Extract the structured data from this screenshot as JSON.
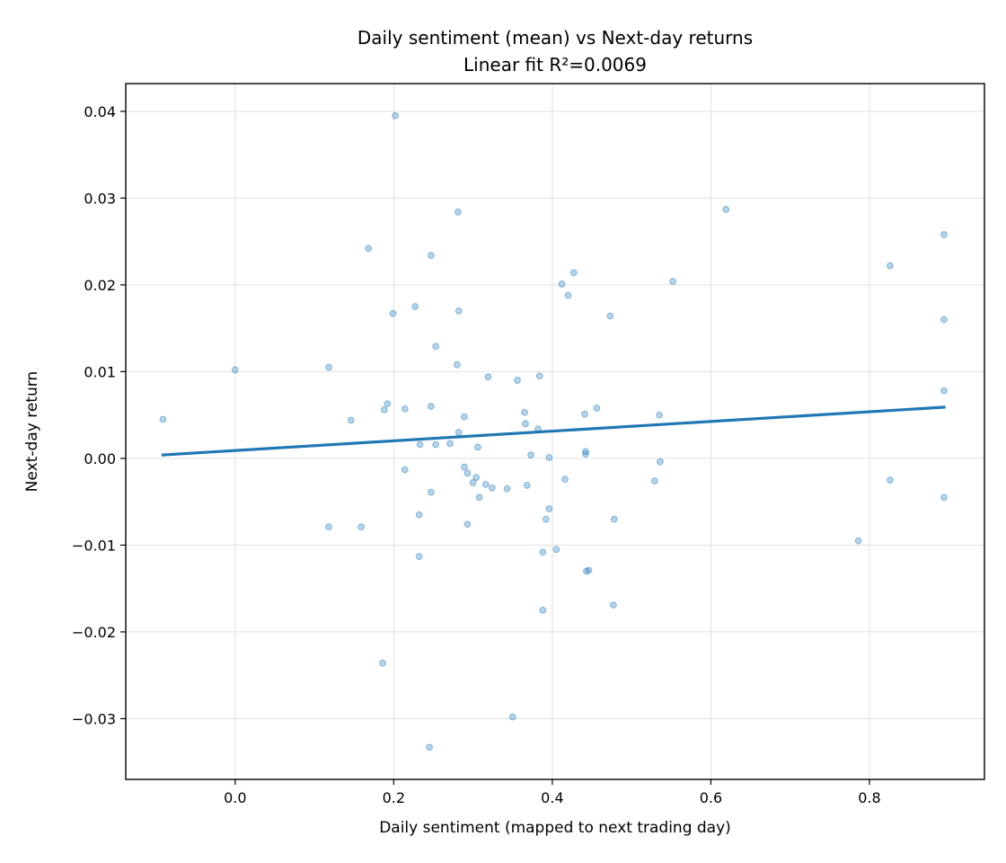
{
  "chart_data": {
    "type": "scatter",
    "title": "Daily sentiment (mean) vs Next-day returns",
    "subtitle": "Linear fit R²=0.0069",
    "xlabel": "Daily sentiment (mapped to next trading day)",
    "ylabel": "Next-day return",
    "xlim": [
      -0.138,
      0.945
    ],
    "ylim": [
      -0.037,
      0.0432
    ],
    "xticks": [
      0.0,
      0.2,
      0.4,
      0.6,
      0.8
    ],
    "xtick_labels": [
      "0.0",
      "0.2",
      "0.4",
      "0.6",
      "0.8"
    ],
    "yticks": [
      -0.03,
      -0.02,
      -0.01,
      0.0,
      0.01,
      0.02,
      0.03,
      0.04
    ],
    "ytick_labels": [
      "−0.03",
      "−0.02",
      "−0.01",
      "0.00",
      "0.01",
      "0.02",
      "0.03",
      "0.04"
    ],
    "grid": true,
    "colors": {
      "points": "#1f77b4",
      "fit_line": "#1f77b4",
      "grid": "#e0e0e0"
    },
    "points": [
      {
        "x": -0.091,
        "y": 0.0045
      },
      {
        "x": 0.0,
        "y": 0.0102
      },
      {
        "x": 0.118,
        "y": 0.0105
      },
      {
        "x": 0.118,
        "y": -0.0079
      },
      {
        "x": 0.146,
        "y": 0.0044
      },
      {
        "x": 0.159,
        "y": -0.0079
      },
      {
        "x": 0.168,
        "y": 0.0242
      },
      {
        "x": 0.186,
        "y": -0.0236
      },
      {
        "x": 0.188,
        "y": 0.0056
      },
      {
        "x": 0.192,
        "y": 0.0063
      },
      {
        "x": 0.199,
        "y": 0.0167
      },
      {
        "x": 0.202,
        "y": 0.0395
      },
      {
        "x": 0.214,
        "y": 0.0057
      },
      {
        "x": 0.214,
        "y": -0.0013
      },
      {
        "x": 0.227,
        "y": 0.0175
      },
      {
        "x": 0.232,
        "y": -0.0065
      },
      {
        "x": 0.232,
        "y": -0.0113
      },
      {
        "x": 0.233,
        "y": 0.0016
      },
      {
        "x": 0.245,
        "y": -0.0333
      },
      {
        "x": 0.247,
        "y": 0.0234
      },
      {
        "x": 0.247,
        "y": 0.006
      },
      {
        "x": 0.247,
        "y": -0.0039
      },
      {
        "x": 0.253,
        "y": 0.0129
      },
      {
        "x": 0.253,
        "y": 0.0016
      },
      {
        "x": 0.271,
        "y": 0.0017
      },
      {
        "x": 0.28,
        "y": 0.0108
      },
      {
        "x": 0.281,
        "y": 0.0284
      },
      {
        "x": 0.282,
        "y": 0.017
      },
      {
        "x": 0.282,
        "y": 0.003
      },
      {
        "x": 0.289,
        "y": 0.0048
      },
      {
        "x": 0.289,
        "y": -0.001
      },
      {
        "x": 0.293,
        "y": -0.0017
      },
      {
        "x": 0.293,
        "y": -0.0076
      },
      {
        "x": 0.3,
        "y": -0.0028
      },
      {
        "x": 0.304,
        "y": -0.0022
      },
      {
        "x": 0.306,
        "y": 0.0013
      },
      {
        "x": 0.308,
        "y": -0.0045
      },
      {
        "x": 0.316,
        "y": -0.003
      },
      {
        "x": 0.319,
        "y": 0.0094
      },
      {
        "x": 0.324,
        "y": -0.0034
      },
      {
        "x": 0.343,
        "y": -0.0035
      },
      {
        "x": 0.35,
        "y": -0.0298
      },
      {
        "x": 0.356,
        "y": 0.009
      },
      {
        "x": 0.365,
        "y": 0.0053
      },
      {
        "x": 0.366,
        "y": 0.004
      },
      {
        "x": 0.368,
        "y": -0.0031
      },
      {
        "x": 0.373,
        "y": 0.0004
      },
      {
        "x": 0.382,
        "y": 0.0034
      },
      {
        "x": 0.384,
        "y": 0.0095
      },
      {
        "x": 0.388,
        "y": -0.0175
      },
      {
        "x": 0.388,
        "y": -0.0108
      },
      {
        "x": 0.392,
        "y": -0.007
      },
      {
        "x": 0.396,
        "y": 0.0001
      },
      {
        "x": 0.396,
        "y": -0.0058
      },
      {
        "x": 0.405,
        "y": -0.0105
      },
      {
        "x": 0.412,
        "y": 0.0201
      },
      {
        "x": 0.416,
        "y": -0.0024
      },
      {
        "x": 0.42,
        "y": 0.0188
      },
      {
        "x": 0.427,
        "y": 0.0214
      },
      {
        "x": 0.441,
        "y": 0.0051
      },
      {
        "x": 0.442,
        "y": 0.0008
      },
      {
        "x": 0.442,
        "y": 0.0005
      },
      {
        "x": 0.443,
        "y": -0.013
      },
      {
        "x": 0.446,
        "y": -0.0129
      },
      {
        "x": 0.456,
        "y": 0.0058
      },
      {
        "x": 0.473,
        "y": 0.0164
      },
      {
        "x": 0.477,
        "y": -0.0169
      },
      {
        "x": 0.478,
        "y": -0.007
      },
      {
        "x": 0.529,
        "y": -0.0026
      },
      {
        "x": 0.535,
        "y": 0.005
      },
      {
        "x": 0.536,
        "y": -0.0004
      },
      {
        "x": 0.552,
        "y": 0.0204
      },
      {
        "x": 0.619,
        "y": 0.0287
      },
      {
        "x": 0.786,
        "y": -0.0095
      },
      {
        "x": 0.826,
        "y": 0.0222
      },
      {
        "x": 0.826,
        "y": -0.0025
      },
      {
        "x": 0.894,
        "y": 0.0258
      },
      {
        "x": 0.894,
        "y": 0.016
      },
      {
        "x": 0.894,
        "y": 0.0078
      },
      {
        "x": 0.894,
        "y": -0.0045
      }
    ],
    "fit_line": {
      "x": [
        -0.091,
        0.894
      ],
      "y": [
        0.0004,
        0.0059
      ]
    }
  }
}
